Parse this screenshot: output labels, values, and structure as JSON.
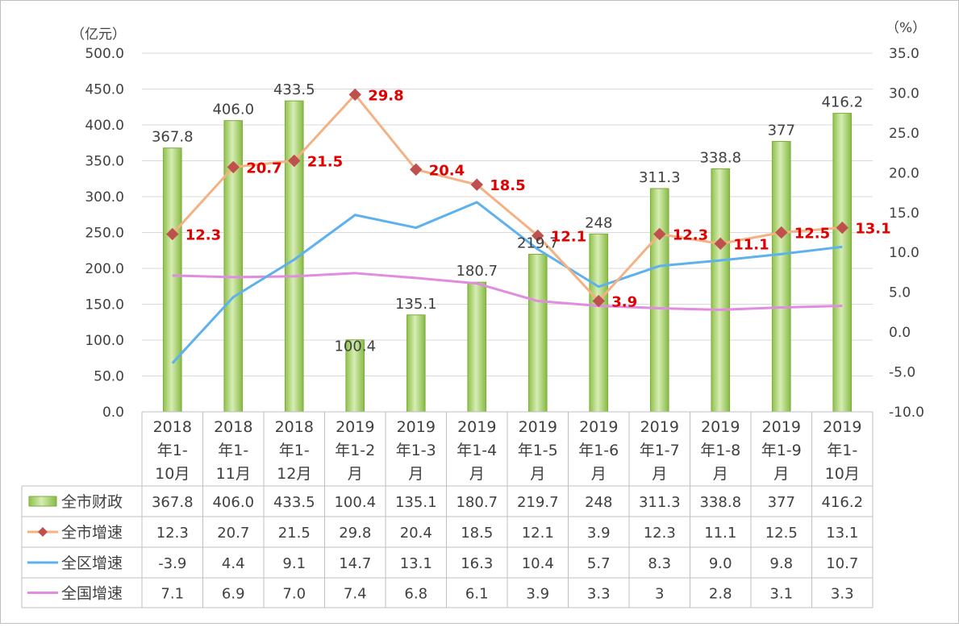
{
  "chart_data": {
    "type": "bar",
    "y_left_unit": "（亿元）",
    "y_right_unit": "（%）",
    "ylim_left": [
      0,
      500
    ],
    "ylim_right": [
      -10,
      35
    ],
    "y_left_ticks": [
      "0.0",
      "50.0",
      "100.0",
      "150.0",
      "200.0",
      "250.0",
      "300.0",
      "350.0",
      "400.0",
      "450.0",
      "500.0"
    ],
    "y_right_ticks": [
      "-10.0",
      "-5.0",
      "0.0",
      "5.0",
      "10.0",
      "15.0",
      "20.0",
      "25.0",
      "30.0",
      "35.0"
    ],
    "categories": [
      [
        "2018",
        "年1-",
        "10月"
      ],
      [
        "2018",
        "年1-",
        "11月"
      ],
      [
        "2018",
        "年1-",
        "12月"
      ],
      [
        "2019",
        "年1-2",
        "月"
      ],
      [
        "2019",
        "年1-3",
        "月"
      ],
      [
        "2019",
        "年1-4",
        "月"
      ],
      [
        "2019",
        "年1-5",
        "月"
      ],
      [
        "2019",
        "年1-6",
        "月"
      ],
      [
        "2019",
        "年1-7",
        "月"
      ],
      [
        "2019",
        "年1-8",
        "月"
      ],
      [
        "2019",
        "年1-9",
        "月"
      ],
      [
        "2019",
        "年1-",
        "10月"
      ]
    ],
    "series": [
      {
        "name": "全市财政",
        "type": "bar",
        "axis": "left",
        "color": "#9BCB5B",
        "values": [
          367.8,
          406.0,
          433.5,
          100.4,
          135.1,
          180.7,
          219.7,
          248,
          311.3,
          338.8,
          377,
          416.2
        ],
        "labels": [
          "367.8",
          "406.0",
          "433.5",
          "100.4",
          "135.1",
          "180.7",
          "219.7",
          "248",
          "311.3",
          "338.8",
          "377",
          "416.2"
        ]
      },
      {
        "name": "全市增速",
        "type": "line",
        "axis": "right",
        "color": "#F4B183",
        "marker_color": "#C0504D",
        "label_color": "#E00000",
        "values": [
          12.3,
          20.7,
          21.5,
          29.8,
          20.4,
          18.5,
          12.1,
          3.9,
          12.3,
          11.1,
          12.5,
          13.1
        ],
        "labels": [
          "12.3",
          "20.7",
          "21.5",
          "29.8",
          "20.4",
          "18.5",
          "12.1",
          "3.9",
          "12.3",
          "11.1",
          "12.5",
          "13.1"
        ]
      },
      {
        "name": "全区增速",
        "type": "line",
        "axis": "right",
        "color": "#5DB1EF",
        "values": [
          -3.9,
          4.4,
          9.1,
          14.7,
          13.1,
          16.3,
          10.4,
          5.7,
          8.3,
          9.0,
          9.8,
          10.7
        ],
        "labels": [
          "-3.9",
          "4.4",
          "9.1",
          "14.7",
          "13.1",
          "16.3",
          "10.4",
          "5.7",
          "8.3",
          "9.0",
          "9.8",
          "10.7"
        ]
      },
      {
        "name": "全国增速",
        "type": "line",
        "axis": "right",
        "color": "#E08CE0",
        "values": [
          7.1,
          6.9,
          7.0,
          7.4,
          6.8,
          6.1,
          3.9,
          3.3,
          3,
          2.8,
          3.1,
          3.3
        ],
        "labels": [
          "7.1",
          "6.9",
          "7.0",
          "7.4",
          "6.8",
          "6.1",
          "3.9",
          "3.3",
          "3",
          "2.8",
          "3.1",
          "3.3"
        ]
      }
    ],
    "grid": true,
    "legend": "data-table-below"
  }
}
